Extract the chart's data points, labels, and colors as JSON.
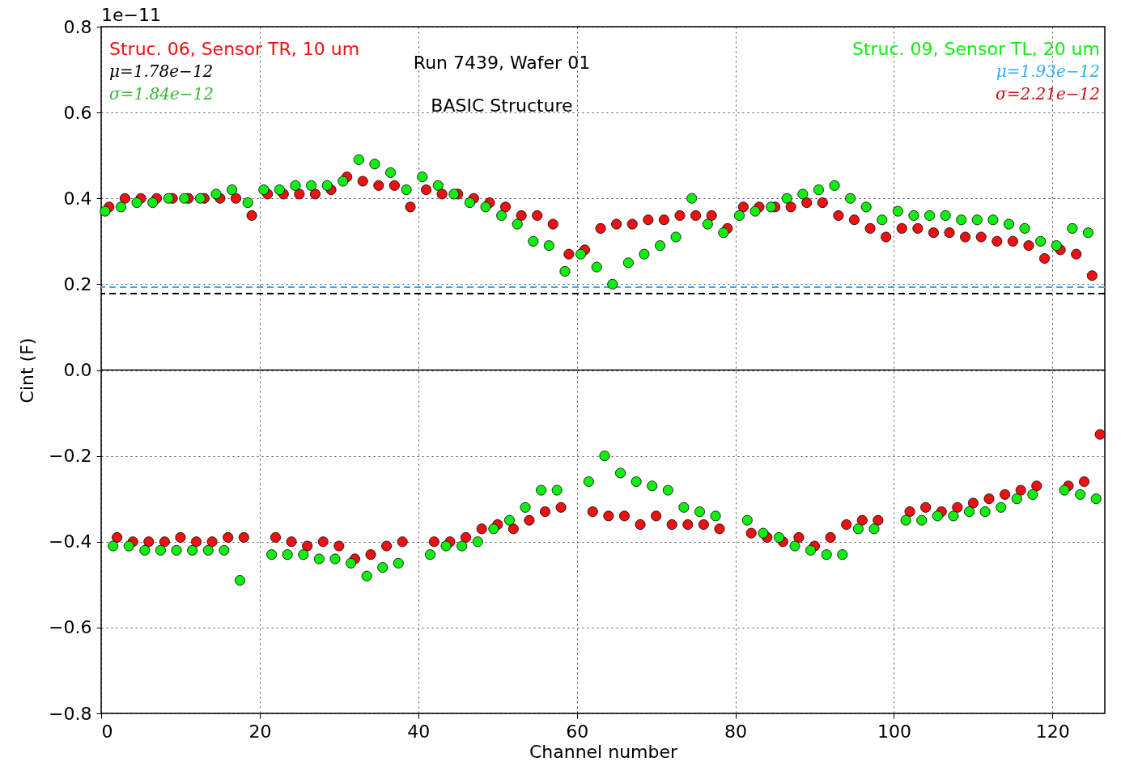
{
  "chart_data": {
    "type": "scatter",
    "xlabel": "Channel number",
    "ylabel": "Cint (F)",
    "xlim": [
      0,
      126.6
    ],
    "xticks": [
      0,
      20,
      40,
      60,
      80,
      100,
      120
    ],
    "ylim": [
      -0.8,
      0.8
    ],
    "yticks": [
      {
        "value": -0.8,
        "label": "−0.8"
      },
      {
        "value": -0.6,
        "label": "−0.6"
      },
      {
        "value": -0.4,
        "label": "−0.4"
      },
      {
        "value": -0.2,
        "label": "−0.2"
      },
      {
        "value": 0,
        "label": "0.0"
      },
      {
        "value": 0.2,
        "label": "0.2"
      },
      {
        "value": 0.4,
        "label": "0.4"
      },
      {
        "value": 0.6,
        "label": "0.6"
      },
      {
        "value": 0.8,
        "label": "0.8"
      }
    ],
    "grid": true,
    "marker": "circle",
    "series": [
      {
        "name": "Struc. 06, Sensor TR, 10 um",
        "color": "#ee1111",
        "x": [
          1,
          3,
          5,
          7,
          9,
          11,
          13,
          15,
          17,
          19,
          21,
          23,
          25,
          27,
          29,
          31,
          33,
          35,
          37,
          39,
          41,
          43,
          45,
          47,
          49,
          51,
          53,
          55,
          57,
          59,
          61,
          63,
          65,
          67,
          69,
          71,
          73,
          75,
          77,
          79,
          81,
          83,
          85,
          87,
          89,
          91,
          93,
          95,
          97,
          99,
          101,
          103,
          105,
          107,
          109,
          111,
          113,
          115,
          117,
          119,
          121,
          123,
          125
        ],
        "values": [
          0.38,
          0.4,
          0.4,
          0.4,
          0.4,
          0.4,
          0.4,
          0.4,
          0.4,
          0.36,
          0.41,
          0.41,
          0.41,
          0.41,
          0.42,
          0.45,
          0.44,
          0.43,
          0.43,
          0.38,
          0.42,
          0.41,
          0.41,
          0.4,
          0.39,
          0.38,
          0.36,
          0.36,
          0.34,
          0.27,
          0.28,
          0.33,
          0.34,
          0.34,
          0.35,
          0.35,
          0.36,
          0.36,
          0.36,
          0.33,
          0.38,
          0.38,
          0.38,
          0.38,
          0.39,
          0.39,
          0.36,
          0.35,
          0.33,
          0.31,
          0.33,
          0.33,
          0.32,
          0.32,
          0.31,
          0.31,
          0.3,
          0.3,
          0.29,
          0.26,
          0.28,
          0.27,
          0.22
        ]
      },
      {
        "color": "#ee1111",
        "x": [
          2,
          4,
          6,
          8,
          10,
          12,
          14,
          16,
          18,
          22,
          24,
          26,
          28,
          30,
          32,
          34,
          36,
          38,
          42,
          44,
          46,
          48,
          50,
          52,
          54,
          56,
          58,
          62,
          64,
          66,
          68,
          70,
          72,
          74,
          76,
          78,
          82,
          84,
          86,
          88,
          90,
          92,
          94,
          96,
          98,
          102,
          104,
          106,
          108,
          110,
          112,
          114,
          116,
          118,
          122,
          124,
          126
        ],
        "values": [
          -0.39,
          -0.4,
          -0.4,
          -0.4,
          -0.39,
          -0.4,
          -0.4,
          -0.39,
          -0.39,
          -0.39,
          -0.4,
          -0.41,
          -0.4,
          -0.41,
          -0.44,
          -0.43,
          -0.41,
          -0.4,
          -0.4,
          -0.4,
          -0.39,
          -0.37,
          -0.36,
          -0.37,
          -0.35,
          -0.33,
          -0.32,
          -0.33,
          -0.34,
          -0.34,
          -0.36,
          -0.34,
          -0.36,
          -0.36,
          -0.36,
          -0.37,
          -0.38,
          -0.39,
          -0.4,
          -0.39,
          -0.41,
          -0.39,
          -0.36,
          -0.35,
          -0.35,
          -0.33,
          -0.32,
          -0.33,
          -0.32,
          -0.31,
          -0.3,
          -0.29,
          -0.28,
          -0.27,
          -0.27,
          -0.26,
          -0.15
        ]
      },
      {
        "name": "Struc. 09, Sensor TL, 20 um",
        "color": "#11ee11",
        "x": [
          0.5,
          2.5,
          4.5,
          6.5,
          8.5,
          10.5,
          12.5,
          14.5,
          16.5,
          18.5,
          20.5,
          22.5,
          24.5,
          26.5,
          28.5,
          30.5,
          32.5,
          34.5,
          36.5,
          38.5,
          40.5,
          42.5,
          44.5,
          46.5,
          48.5,
          50.5,
          52.5,
          54.5,
          56.5,
          58.5,
          60.5,
          62.5,
          64.5,
          66.5,
          68.5,
          70.5,
          72.5,
          74.5,
          76.5,
          78.5,
          80.5,
          82.5,
          84.5,
          86.5,
          88.5,
          90.5,
          92.5,
          94.5,
          96.5,
          98.5,
          100.5,
          102.5,
          104.5,
          106.5,
          108.5,
          110.5,
          112.5,
          114.5,
          116.5,
          118.5,
          120.5,
          122.5,
          124.5
        ],
        "values": [
          0.37,
          0.38,
          0.39,
          0.39,
          0.4,
          0.4,
          0.4,
          0.41,
          0.42,
          0.39,
          0.42,
          0.42,
          0.43,
          0.43,
          0.43,
          0.44,
          0.49,
          0.48,
          0.46,
          0.42,
          0.45,
          0.43,
          0.41,
          0.39,
          0.38,
          0.36,
          0.34,
          0.3,
          0.29,
          0.23,
          0.27,
          0.24,
          0.2,
          0.25,
          0.27,
          0.29,
          0.31,
          0.4,
          0.34,
          0.32,
          0.36,
          0.37,
          0.38,
          0.4,
          0.41,
          0.42,
          0.43,
          0.4,
          0.38,
          0.35,
          0.37,
          0.36,
          0.36,
          0.36,
          0.35,
          0.35,
          0.35,
          0.34,
          0.33,
          0.3,
          0.29,
          0.33,
          0.32
        ]
      },
      {
        "color": "#11ee11",
        "x": [
          1.5,
          3.5,
          5.5,
          7.5,
          9.5,
          11.5,
          13.5,
          15.5,
          17.5,
          21.5,
          23.5,
          25.5,
          27.5,
          29.5,
          31.5,
          33.5,
          35.5,
          37.5,
          41.5,
          43.5,
          45.5,
          47.5,
          49.5,
          51.5,
          53.5,
          55.5,
          57.5,
          61.5,
          63.5,
          65.5,
          67.5,
          69.5,
          71.5,
          73.5,
          75.5,
          77.5,
          81.5,
          83.5,
          85.5,
          87.5,
          89.5,
          91.5,
          93.5,
          95.5,
          97.5,
          101.5,
          103.5,
          105.5,
          107.5,
          109.5,
          111.5,
          113.5,
          115.5,
          117.5,
          121.5,
          123.5,
          125.5
        ],
        "values": [
          -0.41,
          -0.41,
          -0.42,
          -0.42,
          -0.42,
          -0.42,
          -0.42,
          -0.42,
          -0.49,
          -0.43,
          -0.43,
          -0.43,
          -0.44,
          -0.44,
          -0.45,
          -0.48,
          -0.46,
          -0.45,
          -0.43,
          -0.41,
          -0.41,
          -0.4,
          -0.37,
          -0.35,
          -0.32,
          -0.28,
          -0.28,
          -0.26,
          -0.2,
          -0.24,
          -0.26,
          -0.27,
          -0.28,
          -0.32,
          -0.33,
          -0.34,
          -0.35,
          -0.38,
          -0.39,
          -0.41,
          -0.42,
          -0.43,
          -0.43,
          -0.37,
          -0.37,
          -0.35,
          -0.35,
          -0.34,
          -0.34,
          -0.33,
          -0.33,
          -0.32,
          -0.3,
          -0.29,
          -0.28,
          -0.29,
          -0.3
        ]
      }
    ],
    "ref_lines": [
      {
        "axis": "y",
        "value": 0,
        "color": "#000000",
        "line_style": "solid"
      },
      {
        "axis": "y",
        "value": 0.178,
        "color": "#000000",
        "line_style": "dashed"
      },
      {
        "axis": "y",
        "value": 0.193,
        "color": "#33aaff",
        "line_style": "dashed"
      }
    ],
    "annotations": [
      "1e−11",
      "Run 7439, Wafer 01",
      "BASIC Structure",
      "μ=1.78e−12",
      "σ=1.84e−12",
      "μ=1.93e−12",
      "σ=2.21e−12"
    ]
  }
}
